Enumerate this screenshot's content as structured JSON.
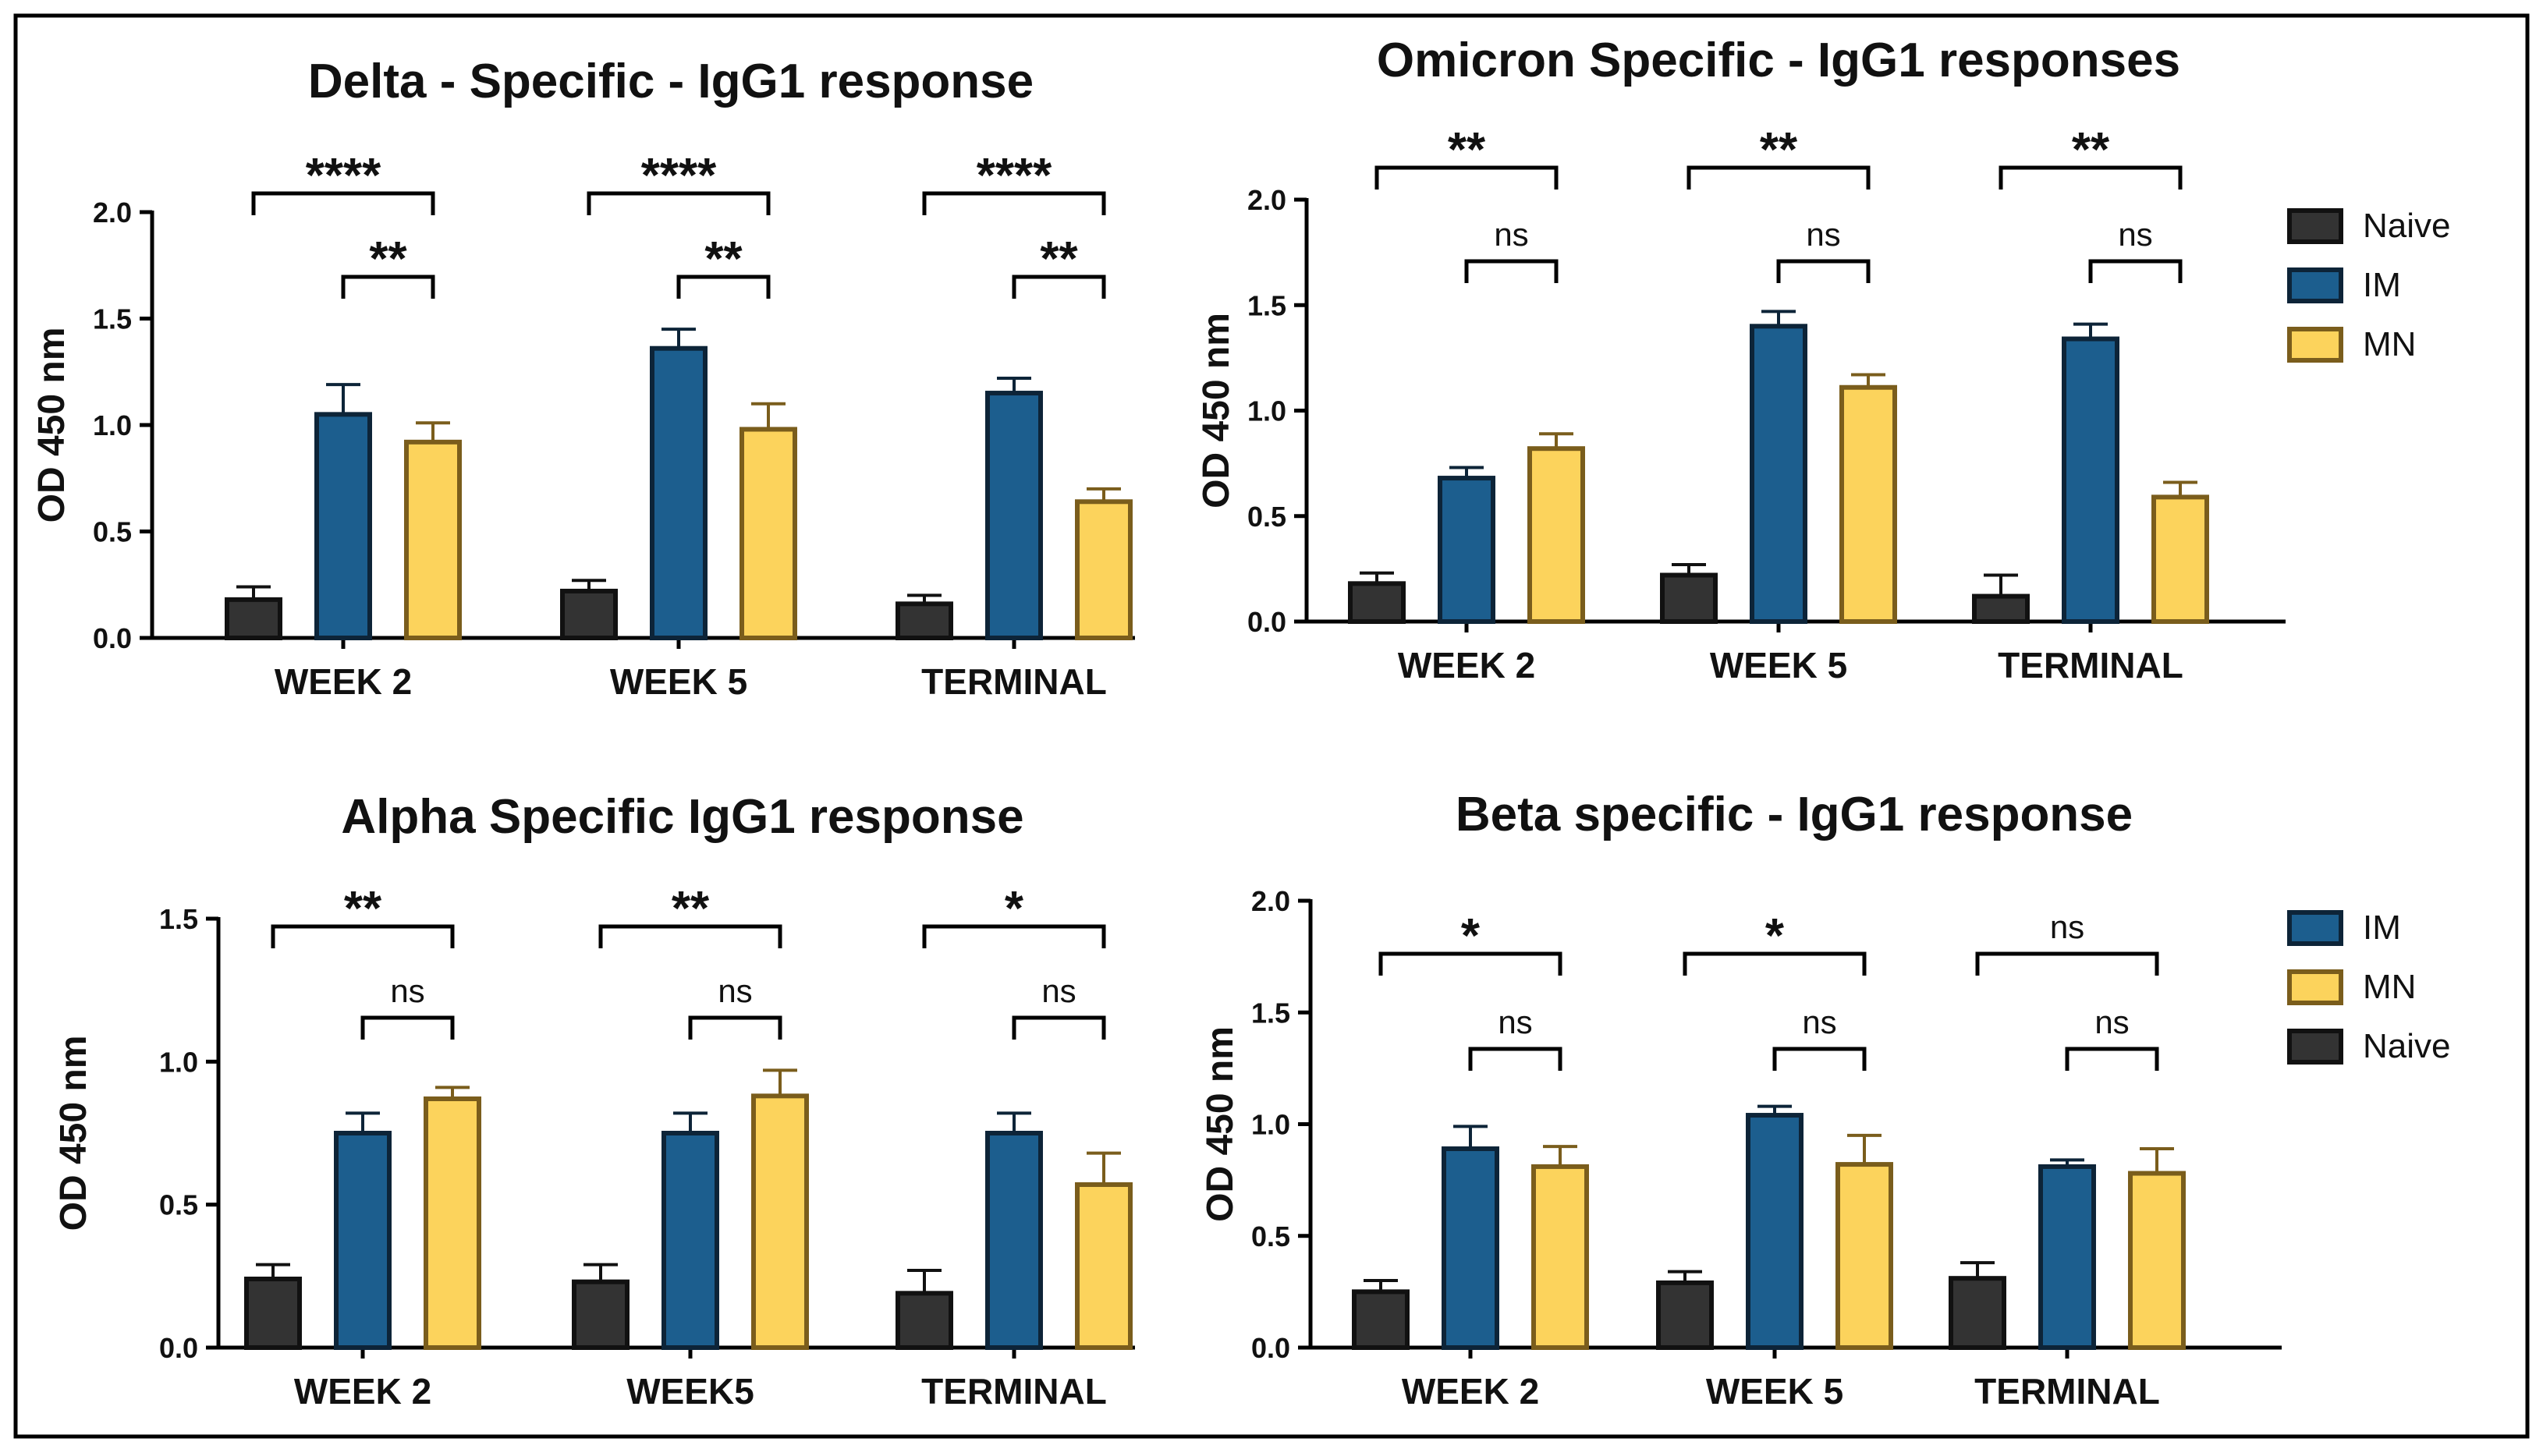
{
  "colors": {
    "Naive": {
      "fill": "#333333",
      "stroke": "#111111",
      "err": "#111111"
    },
    "IM": {
      "fill": "#1c5e8e",
      "stroke": "#0d2438",
      "err": "#0d2438"
    },
    "MN": {
      "fill": "#fcd35c",
      "stroke": "#7a5d1c",
      "err": "#7a5d1c"
    }
  },
  "chart_data": [
    {
      "type": "bar",
      "title": "Delta - Specific - IgG1 response",
      "ylabel": "OD  450 nm",
      "ylim": [
        0,
        2.0
      ],
      "yticks": [
        "0.0",
        "0.5",
        "1.0",
        "1.5",
        "2.0"
      ],
      "categories": [
        "WEEK 2",
        "WEEK 5",
        "TERMINAL"
      ],
      "series": [
        {
          "name": "Naive",
          "values": [
            0.18,
            0.22,
            0.16
          ],
          "errors": [
            0.06,
            0.05,
            0.04
          ]
        },
        {
          "name": "IM",
          "values": [
            1.05,
            1.36,
            1.15
          ],
          "errors": [
            0.14,
            0.09,
            0.07
          ]
        },
        {
          "name": "MN",
          "values": [
            0.92,
            0.98,
            0.64
          ],
          "errors": [
            0.09,
            0.12,
            0.06
          ]
        }
      ],
      "significance": [
        {
          "label": "****",
          "level": 2,
          "from_series": 0,
          "to_series": 2
        },
        {
          "label": "**",
          "level": 1,
          "from_series": 1,
          "to_series": 2
        }
      ],
      "legend": []
    },
    {
      "type": "bar",
      "title": "Omicron Specific - IgG1 responses",
      "ylabel": "OD  450 nm",
      "ylim": [
        0,
        2.0
      ],
      "yticks": [
        "0.0",
        "0.5",
        "1.0",
        "1.5",
        "2.0"
      ],
      "categories": [
        "WEEK 2",
        "WEEK 5",
        "TERMINAL"
      ],
      "series": [
        {
          "name": "Naive",
          "values": [
            0.18,
            0.22,
            0.12
          ],
          "errors": [
            0.05,
            0.05,
            0.1
          ]
        },
        {
          "name": "IM",
          "values": [
            0.68,
            1.4,
            1.34
          ],
          "errors": [
            0.05,
            0.07,
            0.07
          ]
        },
        {
          "name": "MN",
          "values": [
            0.82,
            1.11,
            0.59
          ],
          "errors": [
            0.07,
            0.06,
            0.07
          ]
        }
      ],
      "significance": [
        {
          "label": "**",
          "level": 2,
          "from_series": 0,
          "to_series": 2
        },
        {
          "label": "ns",
          "level": 1,
          "from_series": 1,
          "to_series": 2
        }
      ],
      "legend": [
        "Naive",
        "IM",
        "MN"
      ]
    },
    {
      "type": "bar",
      "title": "Alpha Specific IgG1 response",
      "ylabel": "OD  450 nm",
      "ylim": [
        0,
        1.5
      ],
      "yticks": [
        "0.0",
        "0.5",
        "1.0",
        "1.5"
      ],
      "categories": [
        "WEEK 2",
        "WEEK5",
        "TERMINAL"
      ],
      "series": [
        {
          "name": "Naive",
          "values": [
            0.24,
            0.23,
            0.19
          ],
          "errors": [
            0.05,
            0.06,
            0.08
          ]
        },
        {
          "name": "IM",
          "values": [
            0.75,
            0.75,
            0.75
          ],
          "errors": [
            0.07,
            0.07,
            0.07
          ]
        },
        {
          "name": "MN",
          "values": [
            0.87,
            0.88,
            0.57
          ],
          "errors": [
            0.04,
            0.09,
            0.11
          ]
        }
      ],
      "significance": [
        {
          "label": "**",
          "level": 2,
          "from_series": 0,
          "to_series": 2
        },
        {
          "label": "ns",
          "level": 1,
          "from_series": 1,
          "to_series": 2
        }
      ],
      "sig_overrides": [
        [
          "**",
          "ns"
        ],
        [
          "**",
          "ns"
        ],
        [
          "*",
          "ns"
        ]
      ],
      "legend": []
    },
    {
      "type": "bar",
      "title": "Beta specific - IgG1 response",
      "ylabel": "OD  450 nm",
      "ylim": [
        0,
        2.0
      ],
      "yticks": [
        "0.0",
        "0.5",
        "1.0",
        "1.5",
        "2.0"
      ],
      "categories": [
        "WEEK 2",
        "WEEK 5",
        "TERMINAL"
      ],
      "series": [
        {
          "name": "Naive",
          "values": [
            0.25,
            0.29,
            0.31
          ],
          "errors": [
            0.05,
            0.05,
            0.07
          ]
        },
        {
          "name": "IM",
          "values": [
            0.89,
            1.04,
            0.81
          ],
          "errors": [
            0.1,
            0.04,
            0.03
          ]
        },
        {
          "name": "MN",
          "values": [
            0.81,
            0.82,
            0.78
          ],
          "errors": [
            0.09,
            0.13,
            0.11
          ]
        }
      ],
      "significance": [
        {
          "label": "*",
          "level": 2,
          "from_series": 0,
          "to_series": 2
        },
        {
          "label": "ns",
          "level": 1,
          "from_series": 1,
          "to_series": 2
        }
      ],
      "sig_overrides": [
        [
          "*",
          "ns"
        ],
        [
          "*",
          "ns"
        ],
        [
          "ns",
          "ns"
        ]
      ],
      "legend": [
        "IM",
        "MN",
        "Naive"
      ]
    }
  ]
}
